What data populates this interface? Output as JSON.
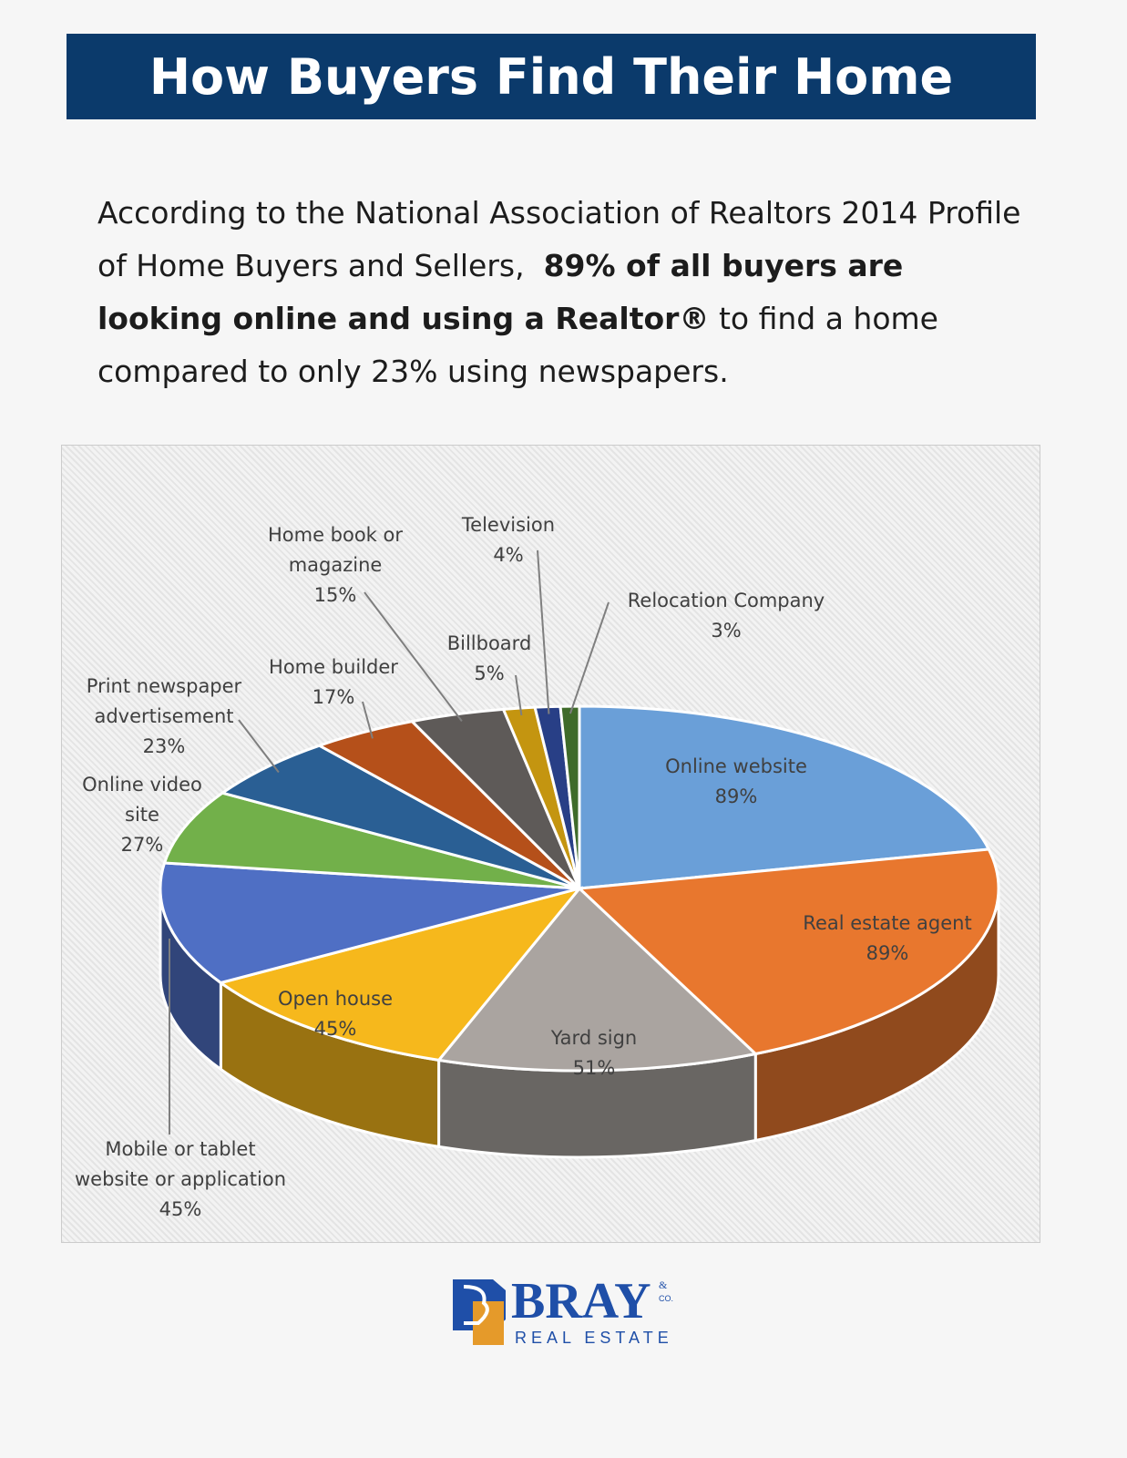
{
  "header": {
    "title": "How Buyers Find Their Home"
  },
  "intro": {
    "lead": "According to the National Association of Realtors 2014 Profile of Home Buyers and Sellers,",
    "highlight": "89% of all buyers are looking online and using a Realtor®",
    "tail": "to find a home compared to only 23% using newspapers."
  },
  "chart_data": {
    "type": "pie",
    "categories": [
      "Online website",
      "Real estate agent",
      "Yard sign",
      "Open house",
      "Mobile or tablet website or application",
      "Online video site",
      "Print newspaper advertisement",
      "Home builder",
      "Home book or magazine",
      "Billboard",
      "Television",
      "Relocation Company"
    ],
    "values": [
      89,
      89,
      51,
      45,
      45,
      27,
      23,
      17,
      15,
      5,
      4,
      3
    ],
    "value_labels": [
      "89%",
      "89%",
      "51%",
      "45%",
      "45%",
      "27%",
      "23%",
      "17%",
      "15%",
      "5%",
      "4%",
      "3%"
    ],
    "colors": [
      "#6a9fd8",
      "#e8772e",
      "#aaa4a0",
      "#f6b81c",
      "#4f6fc4",
      "#72b04a",
      "#2a5f94",
      "#b5501a",
      "#5e5a58",
      "#c49510",
      "#283f86",
      "#3f6b2a"
    ]
  },
  "logo": {
    "name": "BRAY",
    "amp": "&",
    "co": "CO.",
    "tagline": "REAL ESTATE"
  }
}
